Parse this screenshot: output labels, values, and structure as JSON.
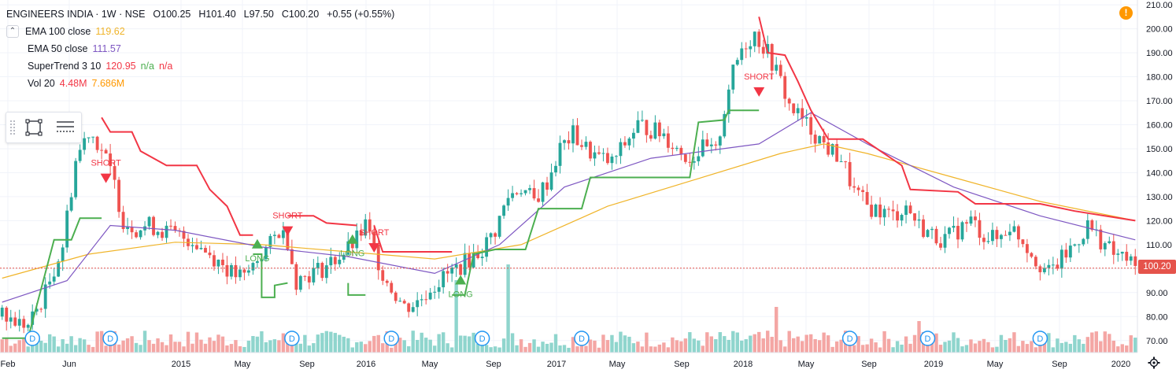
{
  "header": {
    "symbol": "ENGINEERS INDIA · 1W · NSE",
    "open": "O100.25",
    "high": "H101.40",
    "low": "L97.50",
    "close": "C100.20",
    "change": "+0.55 (+0.55%)"
  },
  "indicators": [
    {
      "label": "EMA 100 close",
      "value": "119.62",
      "value2": "",
      "value3": "",
      "color": "#f0b429"
    },
    {
      "label": "EMA 50 close",
      "value": "111.57",
      "value2": "",
      "value3": "",
      "color": "#7e57c2"
    },
    {
      "label": "SuperTrend 3 10",
      "value": "120.95",
      "value2": "n/a",
      "value3": "n/a",
      "color": "#f23645",
      "color2": "#4caf50",
      "color3": "#f23645"
    },
    {
      "label": "Vol 20",
      "value": "4.48M",
      "value2": "7.686M",
      "value3": "",
      "color": "#f23645",
      "color2": "#ff9800"
    }
  ],
  "price_badge": "100.20",
  "alert_icon": "!",
  "chart_data": {
    "type": "candlestick",
    "y_ticks": [
      "210.00",
      "200.00",
      "190.00",
      "180.00",
      "170.00",
      "160.00",
      "150.00",
      "140.00",
      "130.00",
      "120.00",
      "110.00",
      "100.00",
      "90.00",
      "80.00",
      "70.00"
    ],
    "ylim": [
      65,
      212
    ],
    "x_ticks": [
      "Feb",
      "Jun",
      "2015",
      "May",
      "Sep",
      "2016",
      "May",
      "Sep",
      "2017",
      "May",
      "Sep",
      "2018",
      "May",
      "Sep",
      "2019",
      "May",
      "Sep",
      "2020"
    ],
    "last_price": 100.2,
    "close_path": [
      [
        0,
        80
      ],
      [
        6,
        76
      ],
      [
        10,
        90
      ],
      [
        14,
        110
      ],
      [
        17,
        145
      ],
      [
        20,
        158
      ],
      [
        23,
        150
      ],
      [
        26,
        135
      ],
      [
        28,
        120
      ],
      [
        31,
        117
      ],
      [
        34,
        118
      ],
      [
        37,
        116
      ],
      [
        40,
        114
      ],
      [
        44,
        112
      ],
      [
        48,
        106
      ],
      [
        51,
        102
      ],
      [
        53,
        98
      ],
      [
        56,
        96
      ],
      [
        59,
        104
      ],
      [
        62,
        110
      ],
      [
        64,
        116
      ],
      [
        66,
        112
      ],
      [
        68,
        95
      ],
      [
        71,
        98
      ],
      [
        74,
        100
      ],
      [
        77,
        104
      ],
      [
        80,
        108
      ],
      [
        82,
        112
      ],
      [
        84,
        118
      ],
      [
        86,
        108
      ],
      [
        88,
        98
      ],
      [
        90,
        92
      ],
      [
        93,
        84
      ],
      [
        96,
        86
      ],
      [
        99,
        92
      ],
      [
        102,
        96
      ],
      [
        105,
        100
      ],
      [
        108,
        104
      ],
      [
        111,
        108
      ],
      [
        114,
        116
      ],
      [
        117,
        130
      ],
      [
        120,
        134
      ],
      [
        123,
        128
      ],
      [
        126,
        136
      ],
      [
        129,
        150
      ],
      [
        132,
        156
      ],
      [
        135,
        150
      ],
      [
        138,
        146
      ],
      [
        141,
        144
      ],
      [
        144,
        152
      ],
      [
        147,
        160
      ],
      [
        150,
        158
      ],
      [
        153,
        156
      ],
      [
        156,
        150
      ],
      [
        159,
        146
      ],
      [
        162,
        150
      ],
      [
        165,
        148
      ],
      [
        168,
        176
      ],
      [
        171,
        192
      ],
      [
        174,
        198
      ],
      [
        177,
        190
      ],
      [
        180,
        178
      ],
      [
        182,
        168
      ],
      [
        185,
        162
      ],
      [
        188,
        156
      ],
      [
        191,
        150
      ],
      [
        194,
        146
      ],
      [
        197,
        132
      ],
      [
        200,
        126
      ],
      [
        203,
        124
      ],
      [
        206,
        122
      ],
      [
        209,
        126
      ],
      [
        212,
        118
      ],
      [
        215,
        114
      ],
      [
        218,
        112
      ],
      [
        221,
        116
      ],
      [
        224,
        120
      ],
      [
        227,
        114
      ],
      [
        230,
        112
      ],
      [
        233,
        118
      ],
      [
        236,
        112
      ],
      [
        239,
        104
      ],
      [
        242,
        98
      ],
      [
        245,
        104
      ],
      [
        248,
        110
      ],
      [
        251,
        118
      ],
      [
        254,
        112
      ],
      [
        257,
        106
      ],
      [
        260,
        104
      ],
      [
        262,
        100
      ]
    ],
    "series": [
      {
        "name": "EMA 100 close",
        "color": "#f0b429",
        "points": [
          [
            0,
            96
          ],
          [
            20,
            106
          ],
          [
            40,
            111
          ],
          [
            60,
            110
          ],
          [
            80,
            107
          ],
          [
            100,
            104
          ],
          [
            120,
            110
          ],
          [
            140,
            126
          ],
          [
            160,
            137
          ],
          [
            180,
            148
          ],
          [
            190,
            152
          ],
          [
            200,
            148
          ],
          [
            220,
            138
          ],
          [
            240,
            128
          ],
          [
            262,
            120
          ]
        ]
      },
      {
        "name": "EMA 50 close",
        "color": "#7e57c2",
        "points": [
          [
            0,
            86
          ],
          [
            15,
            95
          ],
          [
            25,
            118
          ],
          [
            40,
            116
          ],
          [
            60,
            109
          ],
          [
            80,
            105
          ],
          [
            100,
            98
          ],
          [
            115,
            110
          ],
          [
            130,
            134
          ],
          [
            150,
            146
          ],
          [
            175,
            152
          ],
          [
            187,
            165
          ],
          [
            200,
            152
          ],
          [
            220,
            134
          ],
          [
            240,
            122
          ],
          [
            262,
            112
          ]
        ]
      },
      {
        "name": "SuperTrend up",
        "color": "#4caf50",
        "segments": [
          [
            [
              0,
              71
            ],
            [
              6,
              71
            ],
            [
              12,
              112
            ],
            [
              16,
              112
            ],
            [
              18,
              121
            ],
            [
              23,
              121
            ]
          ],
          [
            [
              58,
              106
            ],
            [
              60,
              106
            ],
            [
              60,
              88
            ],
            [
              63,
              88
            ],
            [
              63,
              93
            ],
            [
              66,
              94
            ]
          ],
          [
            [
              80,
              94
            ],
            [
              80,
              89
            ],
            [
              84,
              89
            ]
          ],
          [
            [
              104,
              89
            ],
            [
              107,
              89
            ],
            [
              109,
              106
            ],
            [
              114,
              108
            ],
            [
              121,
              108
            ],
            [
              124,
              125
            ],
            [
              134,
              125
            ],
            [
              136,
              138
            ],
            [
              159,
              138
            ],
            [
              161,
              161
            ],
            [
              167,
              162
            ],
            [
              168,
              166
            ],
            [
              175,
              166
            ]
          ]
        ]
      },
      {
        "name": "SuperTrend down",
        "color": "#f23645",
        "segments": [
          [
            [
              23,
              163
            ],
            [
              25,
              157
            ],
            [
              30,
              157
            ],
            [
              32,
              149
            ],
            [
              38,
              143
            ],
            [
              45,
              143
            ],
            [
              48,
              133
            ],
            [
              52,
              126
            ],
            [
              55,
              114
            ],
            [
              58,
              114
            ]
          ],
          [
            [
              66,
              122
            ],
            [
              72,
              122
            ],
            [
              75,
              119
            ],
            [
              82,
              118
            ]
          ],
          [
            [
              86,
              118
            ],
            [
              88,
              107
            ],
            [
              102,
              107
            ],
            [
              104,
              107
            ]
          ],
          [
            [
              175,
              205
            ],
            [
              177,
              190
            ],
            [
              181,
              189
            ],
            [
              184,
              178
            ],
            [
              187,
              166
            ],
            [
              191,
              154
            ],
            [
              199,
              154
            ],
            [
              208,
              143
            ],
            [
              210,
              133
            ],
            [
              221,
              132
            ],
            [
              225,
              127
            ],
            [
              240,
              127
            ],
            [
              248,
              124
            ],
            [
              262,
              120
            ]
          ]
        ]
      }
    ],
    "volume": [],
    "annotations": [
      {
        "text": "SHORT",
        "x": 24,
        "y": 137,
        "kind": "short"
      },
      {
        "text": "LONG",
        "x": 59,
        "y": 111,
        "kind": "long"
      },
      {
        "text": "SHORT",
        "x": 66,
        "y": 115,
        "kind": "short"
      },
      {
        "text": "LONG",
        "x": 81,
        "y": 113,
        "kind": "long"
      },
      {
        "text": "SHORT",
        "x": 86,
        "y": 108,
        "kind": "short"
      },
      {
        "text": "LONG",
        "x": 106,
        "y": 96,
        "kind": "long"
      },
      {
        "text": "SHORT",
        "x": 175,
        "y": 173,
        "kind": "short"
      }
    ],
    "dividend_markers": [
      7,
      25,
      67,
      90,
      111,
      134,
      196,
      214,
      240
    ],
    "dividend_label": "D",
    "colors": {
      "up": "#26a69a",
      "down": "#ef5350",
      "vol_up": "#8fd5cd",
      "vol_down": "#f4a6a4",
      "grid": "#f0f3fa",
      "axis_text": "#131722"
    }
  }
}
